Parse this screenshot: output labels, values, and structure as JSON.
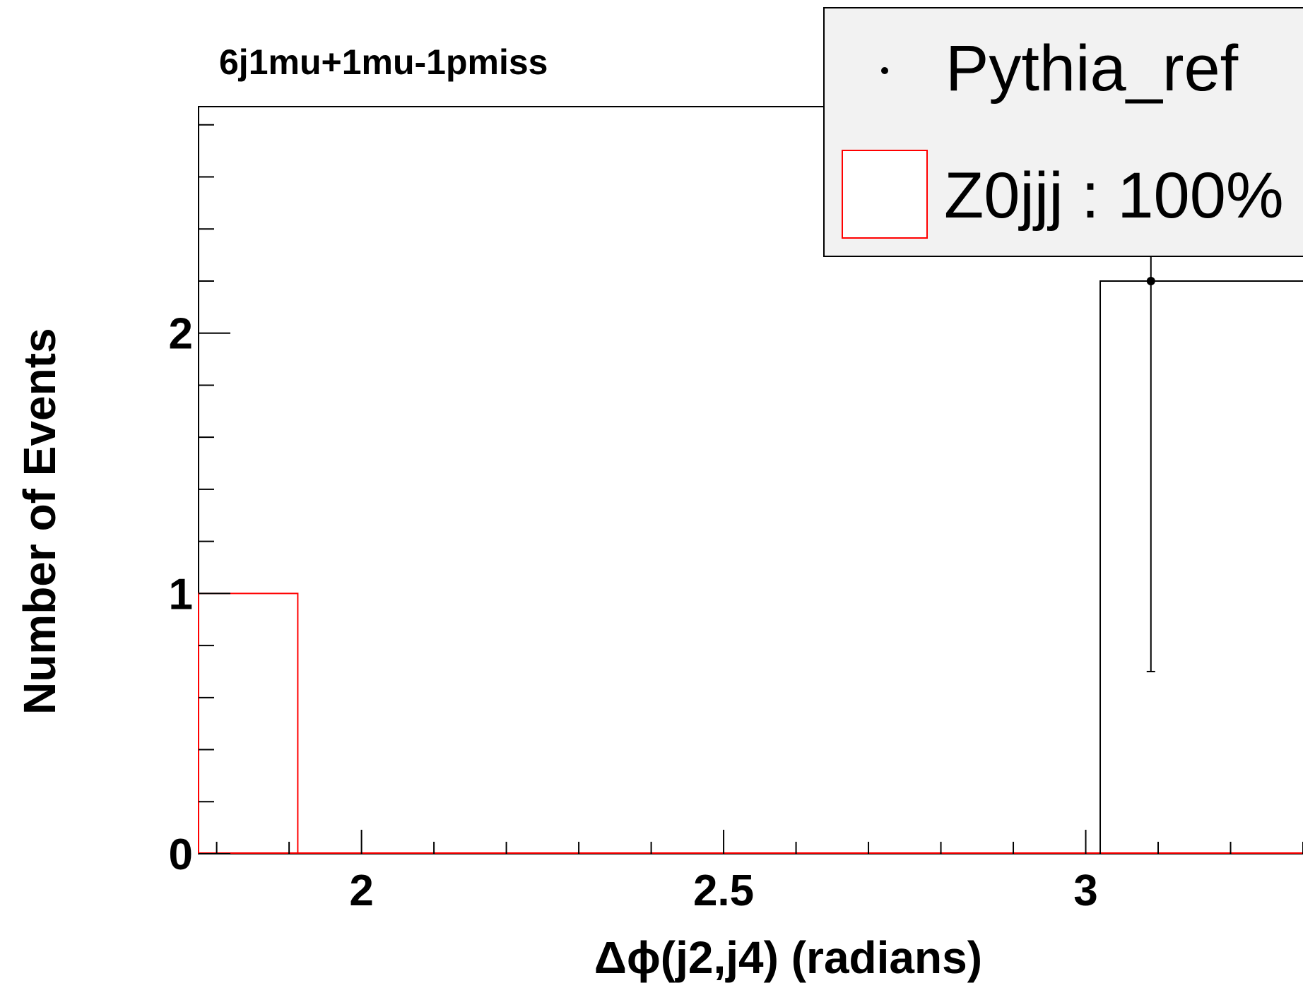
{
  "chart_data": {
    "type": "bar",
    "title": "6j1mu+1mu-1pmiss",
    "xlabel": "Δϕ(j2,j4) (radians)",
    "ylabel": "Number of Events",
    "xlim": [
      1.775,
      3.3
    ],
    "ylim": [
      0,
      2.87
    ],
    "x_ticks": [
      {
        "value": 2,
        "label": "2"
      },
      {
        "value": 2.5,
        "label": "2.5"
      },
      {
        "value": 3,
        "label": "3"
      }
    ],
    "y_ticks": [
      {
        "value": 0,
        "label": "0"
      },
      {
        "value": 1,
        "label": "1"
      },
      {
        "value": 2,
        "label": "2"
      }
    ],
    "legend": {
      "placement": "top-right",
      "entries": [
        {
          "label": "Pythia_ref",
          "style": "marker"
        },
        {
          "label": "Z0jjj : 100%",
          "style": "box",
          "color": "#ff0000"
        }
      ]
    },
    "series": [
      {
        "name": "Z0jjj : 100%",
        "kind": "histogram",
        "color": "#ff0000",
        "bins": [
          {
            "x_low": 1.775,
            "x_high": 1.912,
            "value": 1
          }
        ]
      },
      {
        "name": "Pythia_ref",
        "kind": "points",
        "color": "#000000",
        "step_bins": [
          {
            "x_low": 3.02,
            "x_high": 3.3,
            "value": 2.2
          }
        ],
        "points": [
          {
            "x": 3.09,
            "y": 2.2,
            "y_err_low": 0.7,
            "y_err_high": 2.87
          }
        ]
      }
    ]
  }
}
